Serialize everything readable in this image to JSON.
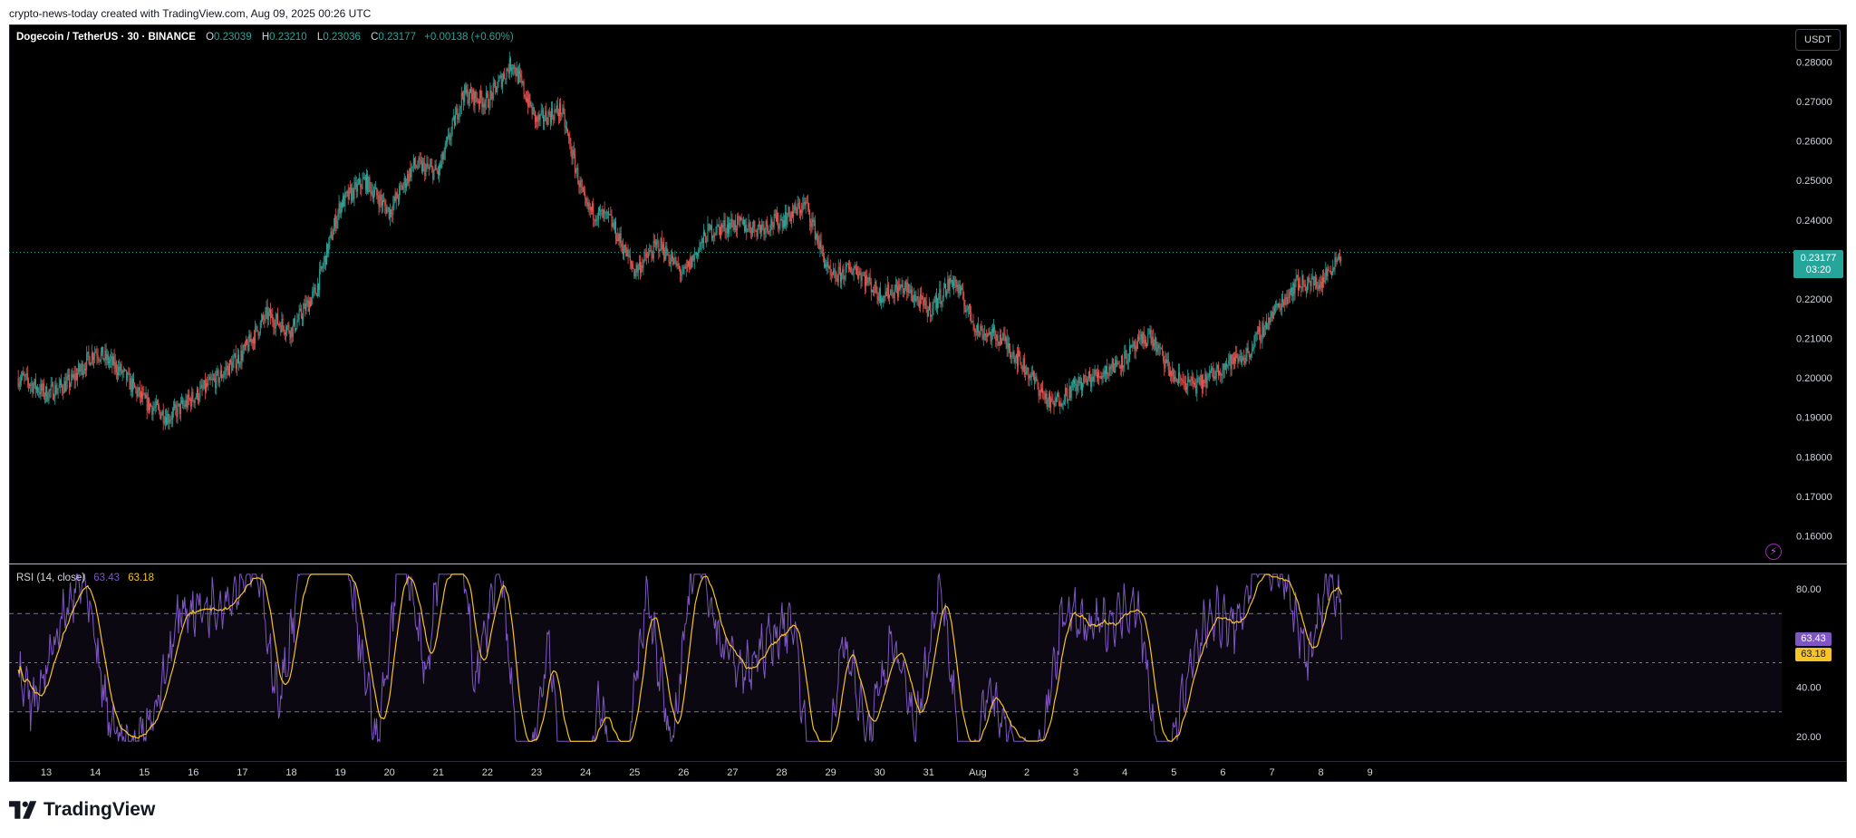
{
  "caption": "crypto-news-today created with TradingView.com, Aug 09, 2025 00:26 UTC",
  "legend": {
    "symbol": "Dogecoin / TetherUS · 30 · BINANCE",
    "o_label": "O",
    "o_value": "0.23039",
    "h_label": "H",
    "h_value": "0.23210",
    "l_label": "L",
    "l_value": "0.23036",
    "c_label": "C",
    "c_value": "0.23177",
    "change": "+0.00138 (+0.60%)"
  },
  "currency": "USDT",
  "last_price": {
    "price": "0.23177",
    "countdown": "03:20"
  },
  "rsi": {
    "title": "RSI (14, close)",
    "value": "63.43",
    "ma": "63.18"
  },
  "brand": "TradingView",
  "colors": {
    "up": "#26a69a",
    "down": "#ef5350",
    "rsi": "#7e57c2",
    "rsi_ma": "#f7c325",
    "background": "#000000",
    "text": "#d1d4dc"
  },
  "chart_data": [
    {
      "type": "candlestick",
      "title": "Dogecoin / TetherUS · 30 · BINANCE",
      "x_tick_labels": [
        "13",
        "14",
        "15",
        "16",
        "17",
        "18",
        "19",
        "20",
        "21",
        "22",
        "23",
        "24",
        "25",
        "26",
        "27",
        "28",
        "29",
        "30",
        "31",
        "Aug",
        "2",
        "3",
        "4",
        "5",
        "6",
        "7",
        "8",
        "9"
      ],
      "y_tick_labels": [
        "0.28000",
        "0.27000",
        "0.26000",
        "0.25000",
        "0.24000",
        "0.23000",
        "0.22000",
        "0.21000",
        "0.20000",
        "0.19000",
        "0.18000",
        "0.17000",
        "0.16000"
      ],
      "ylim": [
        0.153,
        0.2895
      ],
      "last_price": 0.23177,
      "close_path": {
        "days": [
          12.5,
          13.0,
          13.5,
          14.0,
          14.5,
          15.0,
          15.5,
          16.0,
          16.5,
          17.0,
          17.5,
          18.0,
          18.5,
          19.0,
          19.5,
          20.0,
          20.5,
          21.0,
          21.5,
          22.0,
          22.5,
          23.0,
          23.5,
          24.0,
          24.5,
          25.0,
          25.5,
          26.0,
          26.5,
          27.0,
          27.5,
          28.0,
          28.5,
          29.0,
          29.5,
          30.0,
          30.5,
          31.0,
          31.5,
          32.0,
          32.5,
          33.0,
          33.5,
          34.0,
          34.5,
          35.0,
          35.5,
          36.0,
          36.5,
          37.0,
          37.5,
          38.0,
          38.5,
          39.0,
          39.4
        ],
        "close": [
          0.2,
          0.196,
          0.199,
          0.207,
          0.202,
          0.194,
          0.19,
          0.195,
          0.2,
          0.206,
          0.216,
          0.212,
          0.222,
          0.244,
          0.25,
          0.242,
          0.254,
          0.252,
          0.272,
          0.27,
          0.28,
          0.265,
          0.268,
          0.243,
          0.24,
          0.227,
          0.234,
          0.226,
          0.237,
          0.239,
          0.238,
          0.24,
          0.244,
          0.225,
          0.228,
          0.221,
          0.223,
          0.217,
          0.225,
          0.212,
          0.21,
          0.202,
          0.193,
          0.198,
          0.201,
          0.205,
          0.211,
          0.2,
          0.198,
          0.203,
          0.206,
          0.216,
          0.224,
          0.224,
          0.2318
        ]
      }
    },
    {
      "type": "line",
      "title": "RSI (14, close)",
      "y_tick_labels": [
        "80.00",
        "40.00",
        "20.00"
      ],
      "ylim": [
        10,
        90
      ],
      "bands": [
        30,
        50,
        70
      ],
      "series": [
        {
          "name": "RSI",
          "last": 63.43
        },
        {
          "name": "RSI MA",
          "last": 63.18
        }
      ]
    }
  ]
}
